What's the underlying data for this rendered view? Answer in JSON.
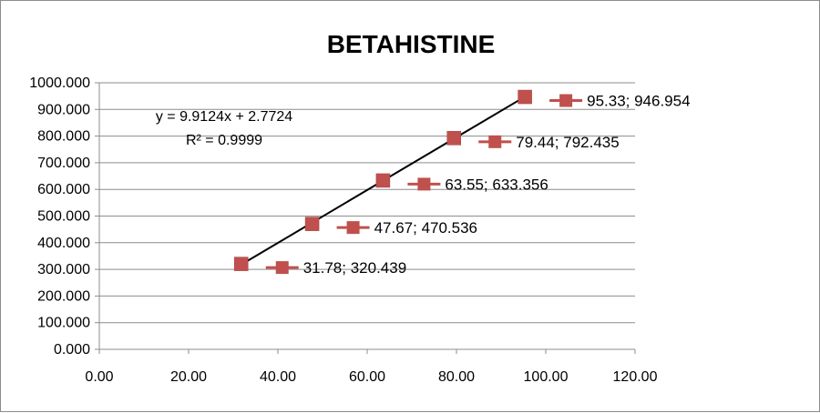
{
  "chart_data": {
    "type": "scatter",
    "title": "BETAHISTINE",
    "xlabel": "",
    "ylabel": "",
    "xlim": [
      0,
      120
    ],
    "ylim": [
      0,
      1000
    ],
    "x_ticks": [
      "0.00",
      "20.00",
      "40.00",
      "60.00",
      "80.00",
      "100.00",
      "120.00"
    ],
    "y_ticks": [
      "0.000",
      "100.000",
      "200.000",
      "300.000",
      "400.000",
      "500.000",
      "600.000",
      "700.000",
      "800.000",
      "900.000",
      "1000.000"
    ],
    "grid": "horizontal",
    "series": [
      {
        "x": [
          31.78,
          47.67,
          63.55,
          79.44,
          95.33
        ],
        "y": [
          320.439,
          470.536,
          633.356,
          792.435,
          946.954
        ],
        "color": "#c0504d",
        "marker": "square"
      }
    ],
    "data_labels": [
      "31.78; 320.439",
      "47.67; 470.536",
      "63.55; 633.356",
      "79.44; 792.435",
      "95.33; 946.954"
    ],
    "trendline": {
      "type": "linear",
      "slope": 9.9124,
      "intercept": 2.7724,
      "color": "#000000",
      "equation_text": "y = 9.9124x + 2.7724",
      "r_squared_text": "R² = 0.9999"
    },
    "colors": {
      "marker": "#c0504d",
      "grid": "#8c8c8c",
      "axis": "#8c8c8c"
    }
  }
}
